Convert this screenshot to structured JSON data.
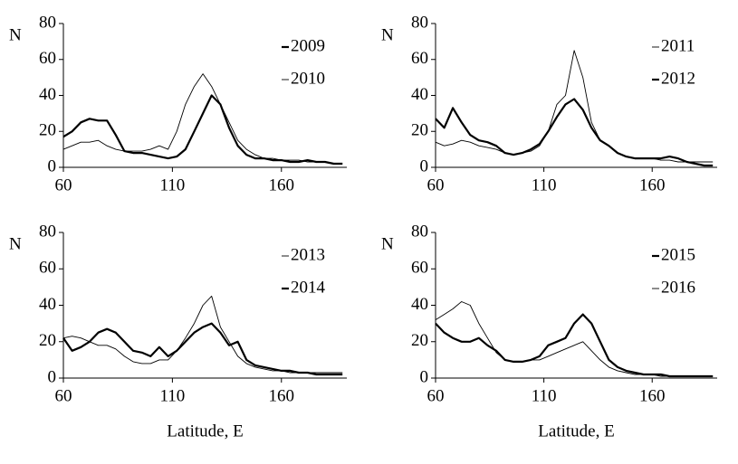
{
  "chart_data": [
    {
      "type": "line",
      "ylabel": "N",
      "x": [
        60,
        64,
        68,
        72,
        76,
        80,
        84,
        88,
        92,
        96,
        100,
        104,
        108,
        112,
        116,
        120,
        124,
        128,
        132,
        136,
        140,
        144,
        148,
        152,
        156,
        160,
        164,
        168,
        172,
        176,
        180,
        184,
        188
      ],
      "xlim": [
        60,
        190
      ],
      "ylim": [
        0,
        80
      ],
      "xticks": [
        60,
        110,
        160
      ],
      "yticks": [
        0,
        20,
        40,
        60,
        80
      ],
      "series": [
        {
          "name": "2009",
          "color": "#000000",
          "line_width": 2.2,
          "values": [
            17,
            20,
            25,
            27,
            26,
            26,
            18,
            9,
            8,
            8,
            7,
            6,
            5,
            6,
            10,
            20,
            30,
            40,
            35,
            22,
            12,
            7,
            5,
            5,
            4,
            4,
            3,
            3,
            4,
            3,
            3,
            2,
            2
          ]
        },
        {
          "name": "2010",
          "color": "#000000",
          "line_width": 0.9,
          "values": [
            10,
            12,
            14,
            14,
            15,
            12,
            10,
            9,
            9,
            9,
            10,
            12,
            10,
            20,
            35,
            45,
            52,
            45,
            35,
            25,
            15,
            10,
            7,
            5,
            5,
            4,
            4,
            4,
            3,
            3,
            3,
            2,
            2
          ]
        }
      ]
    },
    {
      "type": "line",
      "ylabel": "N",
      "x": [
        60,
        64,
        68,
        72,
        76,
        80,
        84,
        88,
        92,
        96,
        100,
        104,
        108,
        112,
        116,
        120,
        124,
        128,
        132,
        136,
        140,
        144,
        148,
        152,
        156,
        160,
        164,
        168,
        172,
        176,
        180,
        184,
        188
      ],
      "xlim": [
        60,
        190
      ],
      "ylim": [
        0,
        80
      ],
      "xticks": [
        60,
        110,
        160
      ],
      "yticks": [
        0,
        20,
        40,
        60,
        80
      ],
      "series": [
        {
          "name": "2011",
          "color": "#000000",
          "line_width": 0.9,
          "values": [
            14,
            12,
            13,
            15,
            14,
            12,
            11,
            10,
            8,
            7,
            8,
            9,
            12,
            20,
            35,
            40,
            65,
            50,
            25,
            15,
            12,
            8,
            6,
            5,
            5,
            5,
            4,
            4,
            3,
            3,
            3,
            3,
            3
          ]
        },
        {
          "name": "2012",
          "color": "#000000",
          "line_width": 2.2,
          "values": [
            27,
            22,
            33,
            25,
            18,
            15,
            14,
            12,
            8,
            7,
            8,
            10,
            13,
            20,
            28,
            35,
            38,
            32,
            22,
            15,
            12,
            8,
            6,
            5,
            5,
            5,
            5,
            6,
            5,
            3,
            2,
            1,
            1
          ]
        }
      ]
    },
    {
      "type": "line",
      "ylabel": "N",
      "xlabel": "Latitude, E",
      "x": [
        60,
        64,
        68,
        72,
        76,
        80,
        84,
        88,
        92,
        96,
        100,
        104,
        108,
        112,
        116,
        120,
        124,
        128,
        132,
        136,
        140,
        144,
        148,
        152,
        156,
        160,
        164,
        168,
        172,
        176,
        180,
        184,
        188
      ],
      "xlim": [
        60,
        190
      ],
      "ylim": [
        0,
        80
      ],
      "xticks": [
        60,
        110,
        160
      ],
      "yticks": [
        0,
        20,
        40,
        60,
        80
      ],
      "series": [
        {
          "name": "2013",
          "color": "#000000",
          "line_width": 0.9,
          "values": [
            22,
            23,
            22,
            20,
            18,
            18,
            16,
            12,
            9,
            8,
            8,
            10,
            10,
            15,
            22,
            30,
            40,
            45,
            28,
            20,
            12,
            8,
            6,
            5,
            4,
            4,
            3,
            3,
            3,
            3,
            3,
            3,
            3
          ]
        },
        {
          "name": "2014",
          "color": "#000000",
          "line_width": 2.2,
          "values": [
            22,
            15,
            17,
            20,
            25,
            27,
            25,
            20,
            15,
            14,
            12,
            17,
            12,
            15,
            20,
            25,
            28,
            30,
            25,
            18,
            20,
            10,
            7,
            6,
            5,
            4,
            4,
            3,
            3,
            2,
            2,
            2,
            2
          ]
        }
      ]
    },
    {
      "type": "line",
      "ylabel": "N",
      "xlabel": "Latitude, E",
      "x": [
        60,
        64,
        68,
        72,
        76,
        80,
        84,
        88,
        92,
        96,
        100,
        104,
        108,
        112,
        116,
        120,
        124,
        128,
        132,
        136,
        140,
        144,
        148,
        152,
        156,
        160,
        164,
        168,
        172,
        176,
        180,
        184,
        188
      ],
      "xlim": [
        60,
        190
      ],
      "ylim": [
        0,
        80
      ],
      "xticks": [
        60,
        110,
        160
      ],
      "yticks": [
        0,
        20,
        40,
        60,
        80
      ],
      "series": [
        {
          "name": "2015",
          "color": "#000000",
          "line_width": 2.2,
          "values": [
            30,
            25,
            22,
            20,
            20,
            22,
            18,
            15,
            10,
            9,
            9,
            10,
            12,
            18,
            20,
            22,
            30,
            35,
            30,
            20,
            10,
            6,
            4,
            3,
            2,
            2,
            2,
            1,
            1,
            1,
            1,
            1,
            1
          ]
        },
        {
          "name": "2016",
          "color": "#000000",
          "line_width": 0.9,
          "values": [
            32,
            35,
            38,
            42,
            40,
            30,
            22,
            14,
            10,
            9,
            9,
            10,
            10,
            12,
            14,
            16,
            18,
            20,
            15,
            10,
            6,
            4,
            3,
            2,
            2,
            2,
            1,
            1,
            1,
            1,
            1,
            1,
            1
          ]
        }
      ]
    }
  ]
}
